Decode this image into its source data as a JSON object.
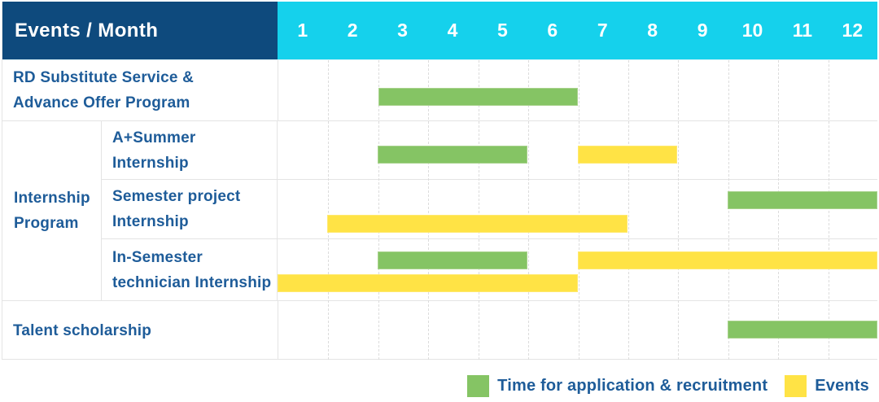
{
  "header": {
    "corner_label": "Events / Month",
    "months": [
      "1",
      "2",
      "3",
      "4",
      "5",
      "6",
      "7",
      "8",
      "9",
      "10",
      "11",
      "12"
    ]
  },
  "colors": {
    "header_bg": "#0e4a7d",
    "month_header_bg": "#15d1ec",
    "application_bar": "#85c464",
    "event_bar": "#ffe345",
    "label_text": "#1e5c99",
    "gridline": "#dcdcdc"
  },
  "labels": {
    "row1_line1": "RD Substitute Service &",
    "row1_line2": "Advance Offer Program",
    "group_line1": "Internship",
    "group_line2": "Program",
    "sub1_line1": "A+Summer",
    "sub1_line2": "Internship",
    "sub2_line1": "Semester project",
    "sub2_line2": "Internship",
    "sub3_line1": "In-Semester",
    "sub3_line2": "technician Internship",
    "row5": "Talent scholarship"
  },
  "chart_data": {
    "type": "gantt",
    "title": "Events / Month",
    "x_unit": "month",
    "x_range": [
      1,
      12
    ],
    "x_ticks": [
      "1",
      "2",
      "3",
      "4",
      "5",
      "6",
      "7",
      "8",
      "9",
      "10",
      "11",
      "12"
    ],
    "legend_position": "bottom-right",
    "legend": [
      {
        "key": "application",
        "label": "Time for application & recruitment",
        "color": "#85c464"
      },
      {
        "key": "event",
        "label": "Events",
        "color": "#ffe345"
      }
    ],
    "rows": [
      {
        "label": "RD Substitute Service & Advance Offer Program",
        "group": "",
        "bars": [
          {
            "type": "application",
            "start_month": 3,
            "end_month": 6,
            "lane": "single"
          }
        ]
      },
      {
        "label": "A+Summer Internship",
        "group": "Internship Program",
        "bars": [
          {
            "type": "application",
            "start_month": 3,
            "end_month": 5,
            "lane": "single"
          },
          {
            "type": "event",
            "start_month": 7,
            "end_month": 8,
            "lane": "single"
          }
        ]
      },
      {
        "label": "Semester project Internship",
        "group": "Internship Program",
        "bars": [
          {
            "type": "application",
            "start_month": 10,
            "end_month": 12,
            "lane": "upper"
          },
          {
            "type": "event",
            "start_month": 2,
            "end_month": 7,
            "lane": "lower"
          }
        ]
      },
      {
        "label": "In-Semester technician Internship",
        "group": "Internship Program",
        "bars": [
          {
            "type": "application",
            "start_month": 3,
            "end_month": 5,
            "lane": "upper"
          },
          {
            "type": "event",
            "start_month": 7,
            "end_month": 12,
            "lane": "upper"
          },
          {
            "type": "event",
            "start_month": 1,
            "end_month": 6,
            "lane": "lower"
          }
        ]
      },
      {
        "label": "Talent scholarship",
        "group": "",
        "bars": [
          {
            "type": "application",
            "start_month": 10,
            "end_month": 12,
            "lane": "single"
          }
        ]
      }
    ]
  },
  "legend": {
    "application_label": "Time for application & recruitment",
    "events_label": "Events"
  }
}
